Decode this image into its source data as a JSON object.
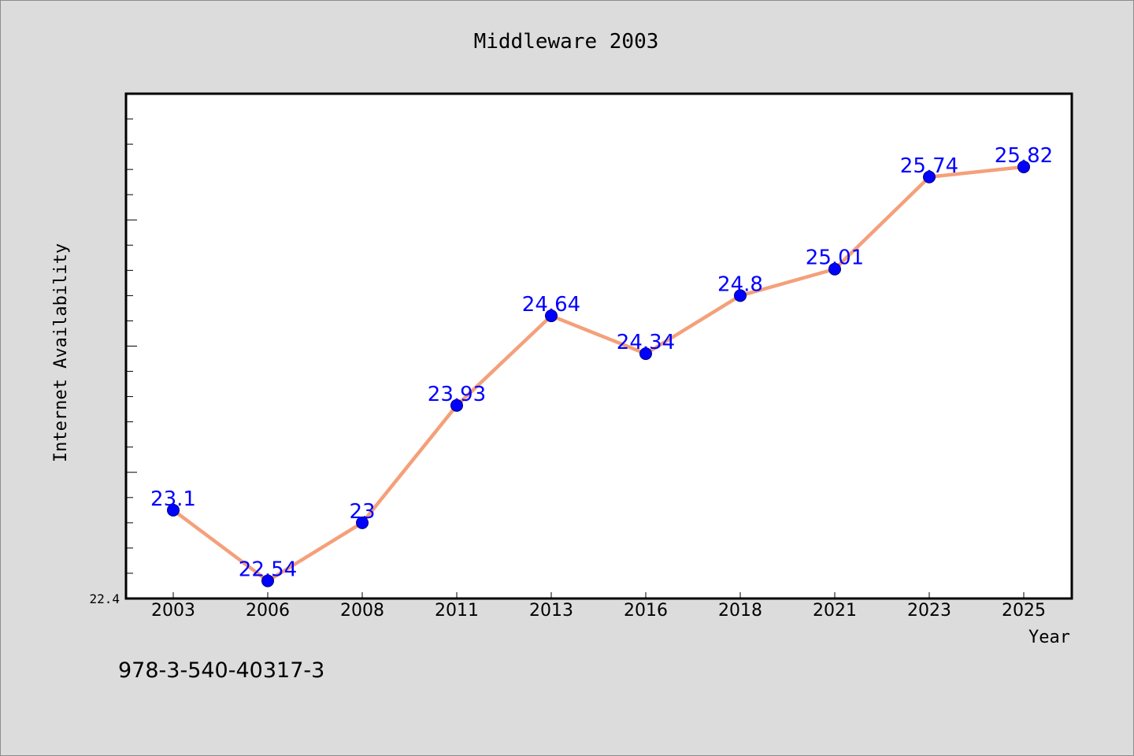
{
  "chart_data": {
    "type": "line",
    "title": "Middleware 2003",
    "xlabel": "Year",
    "ylabel": "Internet Availability",
    "categories": [
      "2003",
      "2006",
      "2008",
      "2011",
      "2013",
      "2016",
      "2018",
      "2021",
      "2023",
      "2025"
    ],
    "series": [
      {
        "values": [
          23.1,
          22.54,
          23,
          23.93,
          24.64,
          24.34,
          24.8,
          25.01,
          25.74,
          25.82
        ]
      }
    ],
    "ylim": [
      22.4,
      26.4
    ],
    "y_tick_labels": [
      "22.4"
    ],
    "grid": false,
    "legend": "none",
    "colors": {
      "line": "#f4a07a",
      "marker": "#0000ff",
      "label": "#0000ff",
      "plot_background": "#ffffff",
      "page_background": "#dcdcdc"
    }
  },
  "footnote": "978-3-540-40317-3"
}
